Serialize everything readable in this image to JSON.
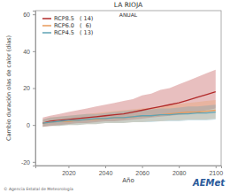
{
  "chart_data": {
    "type": "line",
    "title": "LA RIOJA",
    "subtitle": "ANUAL",
    "x_label": "Año",
    "y_label": "Cambio duración olas de calor (días)",
    "footer": "© Agencia Estatal de Meteorología",
    "logo": "AEMet",
    "legend": "top-left",
    "grid": false,
    "xlim": [
      2002,
      2103
    ],
    "xticks": [
      2020,
      2040,
      2060,
      2080,
      2100
    ],
    "ylim": [
      -22,
      62
    ],
    "yticks": [
      -20,
      0,
      20,
      40,
      60
    ],
    "x": [
      2006,
      2010,
      2015,
      2020,
      2025,
      2030,
      2035,
      2040,
      2045,
      2050,
      2055,
      2060,
      2065,
      2070,
      2075,
      2080,
      2085,
      2090,
      2095,
      2100
    ],
    "series": [
      {
        "name": "RCP8.5",
        "color": "#b22a2a",
        "models": {
          "value": 14,
          "label": "( 14)"
        },
        "values": [
          1,
          2,
          2.5,
          3,
          3.5,
          4,
          4.5,
          5,
          5.5,
          6,
          7,
          8,
          9,
          10,
          11,
          12,
          13.5,
          15,
          16.5,
          18
        ],
        "lower": [
          -1,
          -0.5,
          0,
          0.5,
          1,
          1,
          1.5,
          2,
          2,
          2.5,
          3,
          3.5,
          4,
          4.5,
          5,
          5.5,
          6,
          7,
          8,
          9
        ],
        "upper": [
          4,
          5,
          6,
          7,
          8,
          9,
          10,
          11,
          12,
          13,
          14,
          16,
          17,
          19,
          20,
          22,
          24,
          26,
          28,
          30
        ]
      },
      {
        "name": "RCP6.0",
        "color": "#e89a5a",
        "models": {
          "value": 6,
          "label": "(  6)"
        },
        "values": [
          1,
          1.5,
          2,
          2,
          2.5,
          3,
          3,
          3.5,
          4,
          4,
          4.5,
          5,
          5,
          5.5,
          6,
          6.5,
          7,
          7,
          7.5,
          8
        ],
        "lower": [
          -1,
          -0.5,
          -0.5,
          0,
          0,
          0.5,
          0.5,
          1,
          1,
          1,
          1.5,
          1.5,
          2,
          2,
          2.5,
          2.5,
          3,
          3,
          3,
          3.5
        ],
        "upper": [
          3,
          4,
          4.5,
          5,
          5.5,
          6,
          6.5,
          7,
          7.5,
          8,
          8.5,
          9,
          9.5,
          10,
          11,
          11.5,
          12,
          12.5,
          13,
          13.5
        ]
      },
      {
        "name": "RCP4.5",
        "color": "#5fa3b5",
        "models": {
          "value": 13,
          "label": "( 13)"
        },
        "values": [
          1,
          1.5,
          2,
          2.5,
          2.5,
          3,
          3.5,
          3.5,
          4,
          4,
          4.5,
          5,
          5,
          5.5,
          5.5,
          6,
          6,
          6.5,
          6.5,
          7
        ],
        "lower": [
          -1,
          -0.5,
          -0.5,
          0,
          0,
          0.5,
          0.5,
          1,
          1,
          1,
          1.5,
          1.5,
          1.5,
          2,
          2,
          2,
          2.5,
          2.5,
          2.5,
          3
        ],
        "upper": [
          3,
          4,
          4.5,
          5,
          5.5,
          6,
          6,
          6.5,
          7,
          7.5,
          8,
          8,
          8.5,
          9,
          9,
          9.5,
          10,
          10,
          10.5,
          11
        ]
      }
    ]
  }
}
